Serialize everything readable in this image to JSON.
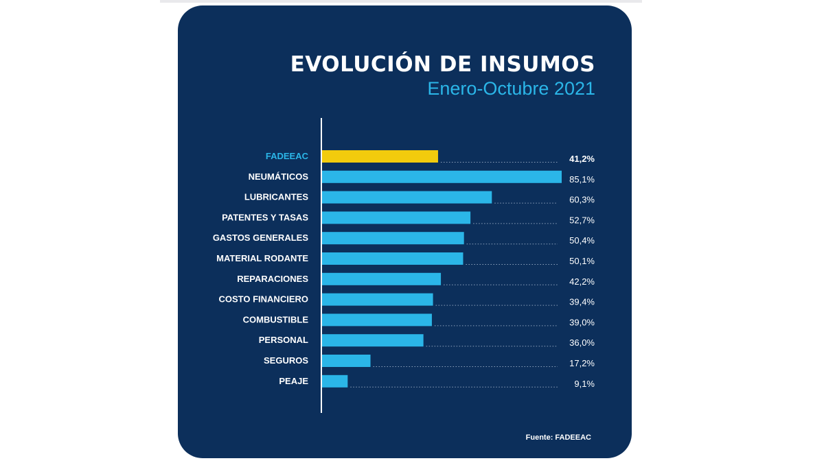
{
  "chart_data": {
    "type": "bar",
    "orientation": "horizontal",
    "title": "EVOLUCIÓN DE INSUMOS",
    "subtitle": "Enero-Octubre 2021",
    "categories": [
      "FADEEAC",
      "NEUMÁTICOS",
      "LUBRICANTES",
      "PATENTES Y TASAS",
      "GASTOS GENERALES",
      "MATERIAL RODANTE",
      "REPARACIONES",
      "COSTO FINANCIERO",
      "COMBUSTIBLE",
      "PERSONAL",
      "SEGUROS",
      "PEAJE"
    ],
    "values": [
      41.2,
      85.1,
      60.3,
      52.7,
      50.4,
      50.1,
      42.2,
      39.4,
      39.0,
      36.0,
      17.2,
      9.1
    ],
    "value_labels": [
      "41,2%",
      "85,1%",
      "60,3%",
      "52,7%",
      "50,4%",
      "50,1%",
      "42,2%",
      "39,4%",
      "39,0%",
      "36,0%",
      "17,2%",
      "9,1%"
    ],
    "highlight_category": "FADEEAC",
    "xlim": [
      0,
      85.1
    ],
    "grid": false,
    "legend": "none"
  },
  "source_label": "Fuente: FADEEAC",
  "colors": {
    "background": "#0c2f5b",
    "bar": "#2bb6e8",
    "highlight_bar": "#f2cb0d",
    "highlight_label": "#2bb6e8",
    "text": "#ffffff",
    "axis": "#ffffff"
  }
}
